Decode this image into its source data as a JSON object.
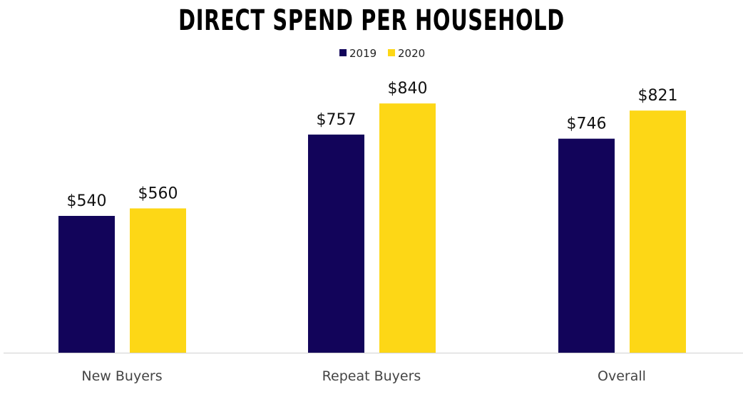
{
  "chart_data": {
    "type": "bar",
    "title": "DIRECT SPEND PER HOUSEHOLD",
    "categories": [
      "New Buyers",
      "Repeat Buyers",
      "Overall"
    ],
    "series": [
      {
        "name": "2019",
        "color": "#12045a",
        "values": [
          540,
          757,
          746
        ],
        "labels": [
          "$540",
          "$757",
          "$746"
        ]
      },
      {
        "name": "2020",
        "color": "#fdd716",
        "values": [
          560,
          840,
          821
        ],
        "labels": [
          "$560",
          "$840",
          "$821"
        ]
      }
    ],
    "xlabel": "",
    "ylabel": "",
    "ylim": [
      175,
      960
    ],
    "grid": false,
    "legend": "top-center"
  }
}
